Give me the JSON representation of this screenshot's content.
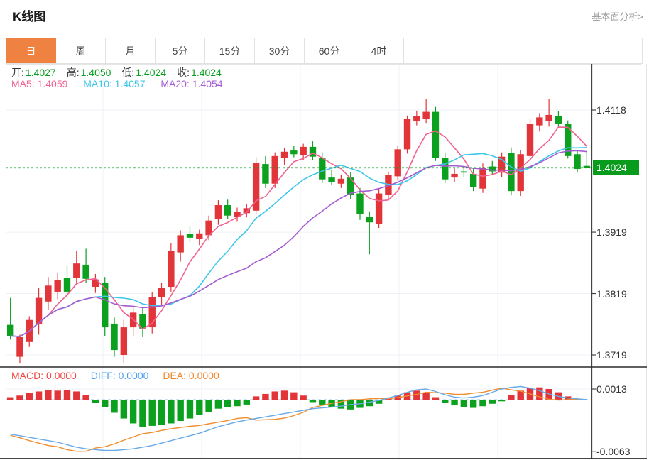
{
  "header": {
    "title": "K线图",
    "link_label": "基本面分析>"
  },
  "tabs": {
    "items": [
      "日",
      "周",
      "月",
      "5分",
      "15分",
      "30分",
      "60分",
      "4时"
    ],
    "selected_index": 0
  },
  "info_bar": {
    "open_label": "开:",
    "open": "1.4027",
    "high_label": "高:",
    "high": "1.4050",
    "low_label": "低:",
    "low": "1.4024",
    "close_label": "收:",
    "close": "1.4024"
  },
  "ma_bar": {
    "ma5_label": "MA5:",
    "ma5": "1.4059",
    "ma10_label": "MA10:",
    "ma10": "1.4057",
    "ma20_label": "MA20:",
    "ma20": "1.4054"
  },
  "macd_bar": {
    "macd_label": "MACD:",
    "macd": "0.0000",
    "diff_label": "DIFF:",
    "diff": "0.0000",
    "dea_label": "DEA:",
    "dea": "0.0000"
  },
  "axis": {
    "main_ticks": [
      {
        "label": "1.4118",
        "value": 1.4118
      },
      {
        "label": "1.3919",
        "value": 1.3919
      },
      {
        "label": "1.3819",
        "value": 1.3819
      },
      {
        "label": "1.3719",
        "value": 1.3719
      }
    ],
    "current_price": {
      "label": "1.4024",
      "value": 1.4024
    },
    "macd_ticks": [
      {
        "label": "0.0013",
        "value": 0.0013
      },
      {
        "label": "-0.0063",
        "value": -0.0063
      }
    ]
  },
  "colors": {
    "up": "#e23539",
    "down": "#0ba11e",
    "badge": "#089b1c",
    "value_text": "#0a9e20",
    "ma5": "#f0618f",
    "ma10": "#3ec6ea",
    "ma20": "#a55cd0",
    "diff_line": "#68aae8",
    "dea_line": "#ef8e2e",
    "price_line": "#0a9e20",
    "zero_line": "#a9d7f2",
    "grid": "#edf1f7",
    "border_light": "#e5e5e5",
    "border_dark": "#2b2b2b",
    "axis_line": "#444444",
    "tab_active": "#ef8240"
  },
  "chart_data": {
    "type": "candlestick+macd",
    "price_axis": {
      "max": 1.4118,
      "min": 1.3719
    },
    "ma_periods": [
      5,
      10,
      20
    ],
    "candles": [
      [
        1.3768,
        1.3812,
        1.3744,
        1.375
      ],
      [
        1.3716,
        1.3752,
        1.3705,
        1.3748
      ],
      [
        1.374,
        1.3782,
        1.3732,
        1.3776
      ],
      [
        1.377,
        1.3828,
        1.3752,
        1.3812
      ],
      [
        1.3806,
        1.3846,
        1.3792,
        1.3832
      ],
      [
        1.3822,
        1.3852,
        1.381,
        1.3841
      ],
      [
        1.3844,
        1.3864,
        1.3812,
        1.3822
      ],
      [
        1.3845,
        1.3888,
        1.3833,
        1.3868
      ],
      [
        1.3866,
        1.3892,
        1.3836,
        1.3843
      ],
      [
        1.383,
        1.3851,
        1.382,
        1.3842
      ],
      [
        1.3836,
        1.3846,
        1.375,
        1.3764
      ],
      [
        1.377,
        1.378,
        1.3716,
        1.3727
      ],
      [
        1.3719,
        1.3776,
        1.3706,
        1.3764
      ],
      [
        1.3764,
        1.3798,
        1.375,
        1.3788
      ],
      [
        1.3786,
        1.3797,
        1.3748,
        1.3762
      ],
      [
        1.3764,
        1.3822,
        1.3754,
        1.3813
      ],
      [
        1.3813,
        1.3836,
        1.3801,
        1.3828
      ],
      [
        1.383,
        1.3901,
        1.3822,
        1.3888
      ],
      [
        1.3886,
        1.3922,
        1.3871,
        1.3914
      ],
      [
        1.3916,
        1.3929,
        1.3903,
        1.391
      ],
      [
        1.3908,
        1.3923,
        1.3898,
        1.3917
      ],
      [
        1.3914,
        1.3946,
        1.3906,
        1.3938
      ],
      [
        1.394,
        1.3971,
        1.3931,
        1.3963
      ],
      [
        1.3963,
        1.3972,
        1.3941,
        1.3946
      ],
      [
        1.3944,
        1.3959,
        1.3936,
        1.3952
      ],
      [
        1.395,
        1.3965,
        1.3943,
        1.3958
      ],
      [
        1.3954,
        1.4041,
        1.3948,
        1.4032
      ],
      [
        1.403,
        1.4043,
        1.3991,
        1.3998
      ],
      [
        1.3998,
        1.4049,
        1.3991,
        1.4043
      ],
      [
        1.404,
        1.4056,
        1.4029,
        1.405
      ],
      [
        1.4052,
        1.4059,
        1.4041,
        1.4046
      ],
      [
        1.4044,
        1.4063,
        1.4037,
        1.4058
      ],
      [
        1.4058,
        1.4067,
        1.4036,
        1.4042
      ],
      [
        1.404,
        1.4049,
        1.3999,
        1.4005
      ],
      [
        1.4008,
        1.4021,
        1.3996,
        1.4001
      ],
      [
        1.3998,
        1.4013,
        1.3991,
        1.4006
      ],
      [
        1.4008,
        1.4017,
        1.3973,
        1.398
      ],
      [
        1.3982,
        1.3991,
        1.3939,
        1.3948
      ],
      [
        1.3944,
        1.3953,
        1.3883,
        1.3935
      ],
      [
        1.3932,
        1.3989,
        1.3926,
        1.3982
      ],
      [
        1.398,
        1.4017,
        1.3973,
        1.4012
      ],
      [
        1.401,
        1.4059,
        1.4003,
        1.4054
      ],
      [
        1.4054,
        1.4109,
        1.4047,
        1.4103
      ],
      [
        1.41,
        1.4117,
        1.4093,
        1.4108
      ],
      [
        1.4104,
        1.4136,
        1.4097,
        1.4115
      ],
      [
        1.4115,
        1.4123,
        1.4035,
        1.404
      ],
      [
        1.404,
        1.4049,
        1.3999,
        1.4005
      ],
      [
        1.4008,
        1.4023,
        1.4001,
        1.4014
      ],
      [
        1.4018,
        1.4027,
        1.4009,
        1.4016
      ],
      [
        1.4014,
        1.4023,
        1.3986,
        1.3992
      ],
      [
        1.399,
        1.4031,
        1.3983,
        1.4024
      ],
      [
        1.4026,
        1.4035,
        1.4013,
        1.4018
      ],
      [
        1.4016,
        1.4049,
        1.4009,
        1.4042
      ],
      [
        1.4048,
        1.4057,
        1.3979,
        1.3986
      ],
      [
        1.3986,
        1.4053,
        1.3978,
        1.4046
      ],
      [
        1.4043,
        1.4103,
        1.4036,
        1.4095
      ],
      [
        1.4093,
        1.4113,
        1.4083,
        1.4106
      ],
      [
        1.41,
        1.4136,
        1.4091,
        1.411
      ],
      [
        1.4108,
        1.4116,
        1.4089,
        1.4095
      ],
      [
        1.4095,
        1.4101,
        1.4039,
        1.4043
      ],
      [
        1.4046,
        1.4053,
        1.4016,
        1.4022
      ],
      [
        1.4027,
        1.405,
        1.4024,
        1.4024
      ]
    ],
    "macd_hist": [
      0.0003,
      0.0005,
      0.0008,
      0.001,
      0.0012,
      0.0011,
      0.0012,
      0.001,
      0.0006,
      -0.0004,
      -0.0009,
      -0.0016,
      -0.0023,
      -0.0029,
      -0.0033,
      -0.0032,
      -0.0031,
      -0.0029,
      -0.0026,
      -0.0023,
      -0.0019,
      -0.0015,
      -0.0011,
      -0.0009,
      -0.0008,
      -0.0006,
      0.0004,
      0.0007,
      0.001,
      0.0011,
      0.0009,
      0.0005,
      -0.0003,
      -0.0006,
      -0.0009,
      -0.0011,
      -0.0012,
      -0.001,
      -0.0008,
      -0.0005,
      0.0002,
      0.0005,
      0.0009,
      0.0011,
      0.0008,
      0.0003,
      -0.0004,
      -0.0007,
      -0.0009,
      -0.001,
      -0.0008,
      -0.0005,
      -0.0002,
      0.0006,
      0.0011,
      0.0014,
      0.0015,
      0.0013,
      0.0009,
      0.0004,
      0.0001,
      0.0
    ],
    "diff": [
      -0.0042,
      -0.0044,
      -0.0046,
      -0.0048,
      -0.005,
      -0.0052,
      -0.0055,
      -0.0058,
      -0.006,
      -0.0061,
      -0.0062,
      -0.0062,
      -0.0061,
      -0.006,
      -0.0058,
      -0.0056,
      -0.0053,
      -0.005,
      -0.0047,
      -0.0044,
      -0.0041,
      -0.0037,
      -0.0033,
      -0.003,
      -0.0027,
      -0.0025,
      -0.0023,
      -0.0021,
      -0.0019,
      -0.0017,
      -0.0015,
      -0.0013,
      -0.0011,
      -0.001,
      -0.0009,
      -0.0008,
      -0.0006,
      -0.0005,
      -0.0003,
      -0.0001,
      0.0002,
      0.0005,
      0.0009,
      0.0012,
      0.0013,
      0.001,
      0.0006,
      0.0003,
      0.0002,
      0.0003,
      0.0005,
      0.0009,
      0.0013,
      0.0015,
      0.0016,
      0.0014,
      0.0011,
      0.0007,
      0.0004,
      0.0002,
      0.0001,
      0.0
    ]
  }
}
